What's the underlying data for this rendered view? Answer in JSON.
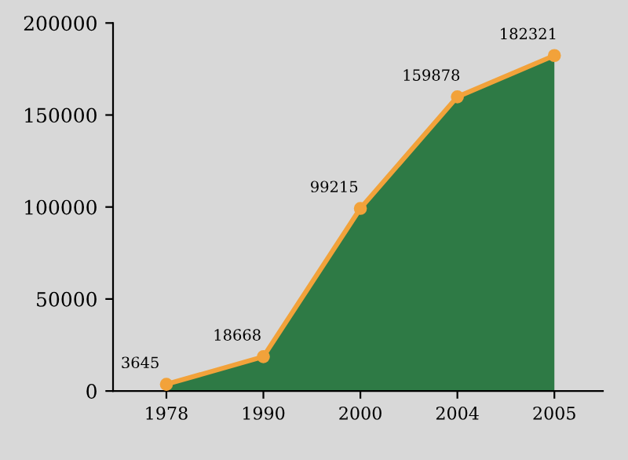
{
  "chart_data": {
    "type": "area",
    "categories": [
      "1978",
      "1990",
      "2000",
      "2004",
      "2005"
    ],
    "series": [
      {
        "color": "#2e7a45",
        "values": [
          3645,
          18668,
          99215,
          159878,
          182321
        ]
      },
      {
        "type": "line",
        "color": "#f2a23a",
        "values": [
          3645,
          18668,
          99215,
          159878,
          182321
        ],
        "marker": "circle",
        "data_labels": true
      }
    ],
    "ylim": [
      0,
      200000
    ],
    "yticks": [
      0,
      50000,
      100000,
      150000,
      200000
    ],
    "grid": false
  }
}
